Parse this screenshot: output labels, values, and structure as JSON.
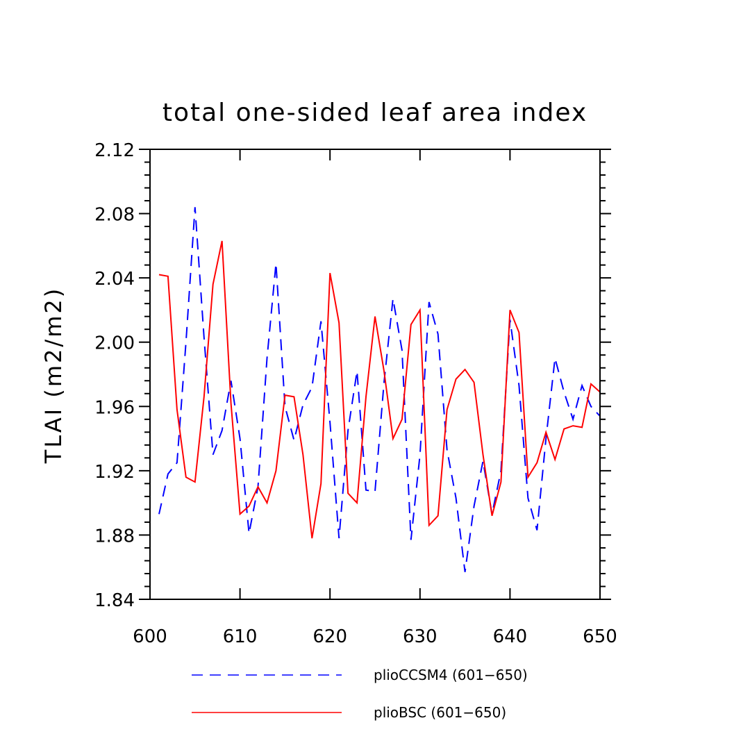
{
  "chart_data": {
    "type": "line",
    "title": "total one-sided leaf area index",
    "xlabel": "",
    "ylabel": "TLAI  (m2/m2)",
    "xlim": [
      600,
      650
    ],
    "ylim": [
      1.84,
      2.12
    ],
    "x_ticks": [
      "600",
      "610",
      "620",
      "630",
      "640",
      "650"
    ],
    "y_ticks": [
      "1.84",
      "1.88",
      "1.92",
      "1.96",
      "2.00",
      "2.04",
      "2.08",
      "2.12"
    ],
    "grid": false,
    "legend_position": "bottom",
    "x": [
      601,
      602,
      603,
      604,
      605,
      606,
      607,
      608,
      609,
      610,
      611,
      612,
      613,
      614,
      615,
      616,
      617,
      618,
      619,
      620,
      621,
      622,
      623,
      624,
      625,
      626,
      627,
      628,
      629,
      630,
      631,
      632,
      633,
      634,
      635,
      636,
      637,
      638,
      639,
      640,
      641,
      642,
      643,
      644,
      645,
      646,
      647,
      648,
      649,
      650
    ],
    "series": [
      {
        "name": "plioCCSM4 (601−650)",
        "color": "#0000ff",
        "dash": "dashed",
        "values": [
          1.893,
          1.918,
          1.925,
          2.0,
          2.084,
          2.003,
          1.93,
          1.945,
          1.976,
          1.94,
          1.881,
          1.91,
          1.99,
          2.049,
          1.96,
          1.939,
          1.961,
          1.972,
          2.013,
          1.95,
          1.878,
          1.945,
          1.982,
          1.908,
          1.907,
          1.975,
          2.027,
          1.995,
          1.877,
          1.93,
          2.025,
          2.005,
          1.933,
          1.903,
          1.857,
          1.898,
          1.926,
          1.893,
          1.92,
          2.014,
          1.973,
          1.903,
          1.883,
          1.94,
          1.99,
          1.969,
          1.952,
          1.973,
          1.96,
          1.954
        ]
      },
      {
        "name": "plioBSC (601−650)",
        "color": "#ff0000",
        "dash": "solid",
        "values": [
          2.042,
          2.041,
          1.958,
          1.916,
          1.913,
          1.966,
          2.036,
          2.063,
          1.962,
          1.893,
          1.898,
          1.91,
          1.9,
          1.92,
          1.967,
          1.966,
          1.93,
          1.878,
          1.912,
          2.043,
          2.012,
          1.906,
          1.9,
          1.966,
          2.016,
          1.982,
          1.94,
          1.952,
          2.011,
          2.02,
          1.886,
          1.892,
          1.958,
          1.977,
          1.983,
          1.975,
          1.93,
          1.892,
          1.913,
          2.02,
          2.006,
          1.916,
          1.925,
          1.944,
          1.927,
          1.946,
          1.948,
          1.947,
          1.974,
          1.969
        ]
      }
    ]
  }
}
